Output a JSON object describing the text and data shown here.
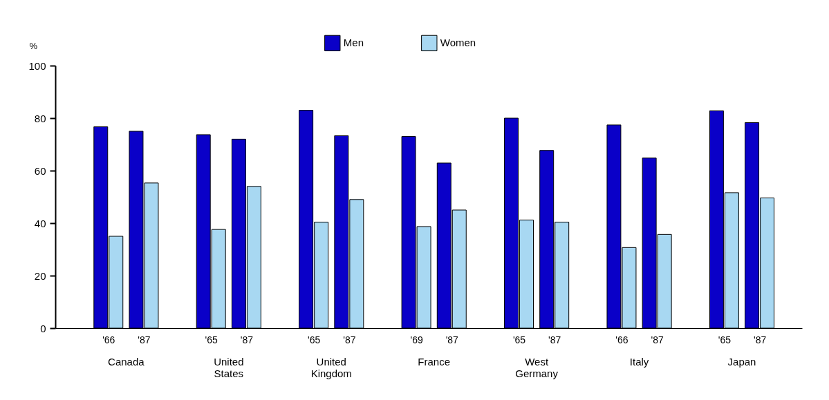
{
  "chart_data": {
    "type": "bar",
    "ylabel": "%",
    "categories": [
      "'66",
      "'87",
      "'65",
      "'87",
      "'65",
      "'87",
      "'69",
      "'87",
      "'65",
      "'87",
      "'66",
      "'87",
      "'65",
      "'87"
    ],
    "series": [
      {
        "name": "Men",
        "color": "#0a00c8",
        "values": [
          76.7,
          75,
          73.7,
          72,
          83,
          73.3,
          73,
          62.9,
          80,
          67.7,
          77.4,
          64.8,
          82.8,
          78.3
        ]
      },
      {
        "name": "Women",
        "color": "#a8d8f2",
        "values": [
          35,
          55.3,
          37.6,
          54,
          40.4,
          49,
          38.7,
          45,
          41.2,
          40.4,
          30.7,
          35.7,
          51.6,
          49.6
        ]
      }
    ],
    "annotations": [
      "Canada",
      "United States",
      "United Kingdom",
      "France",
      "West Germany",
      "Italy",
      "Japan"
    ],
    "ylim": [
      0,
      100
    ],
    "yticks": [
      0,
      20,
      40,
      60,
      80,
      100
    ],
    "grid": false,
    "legend": "top"
  }
}
